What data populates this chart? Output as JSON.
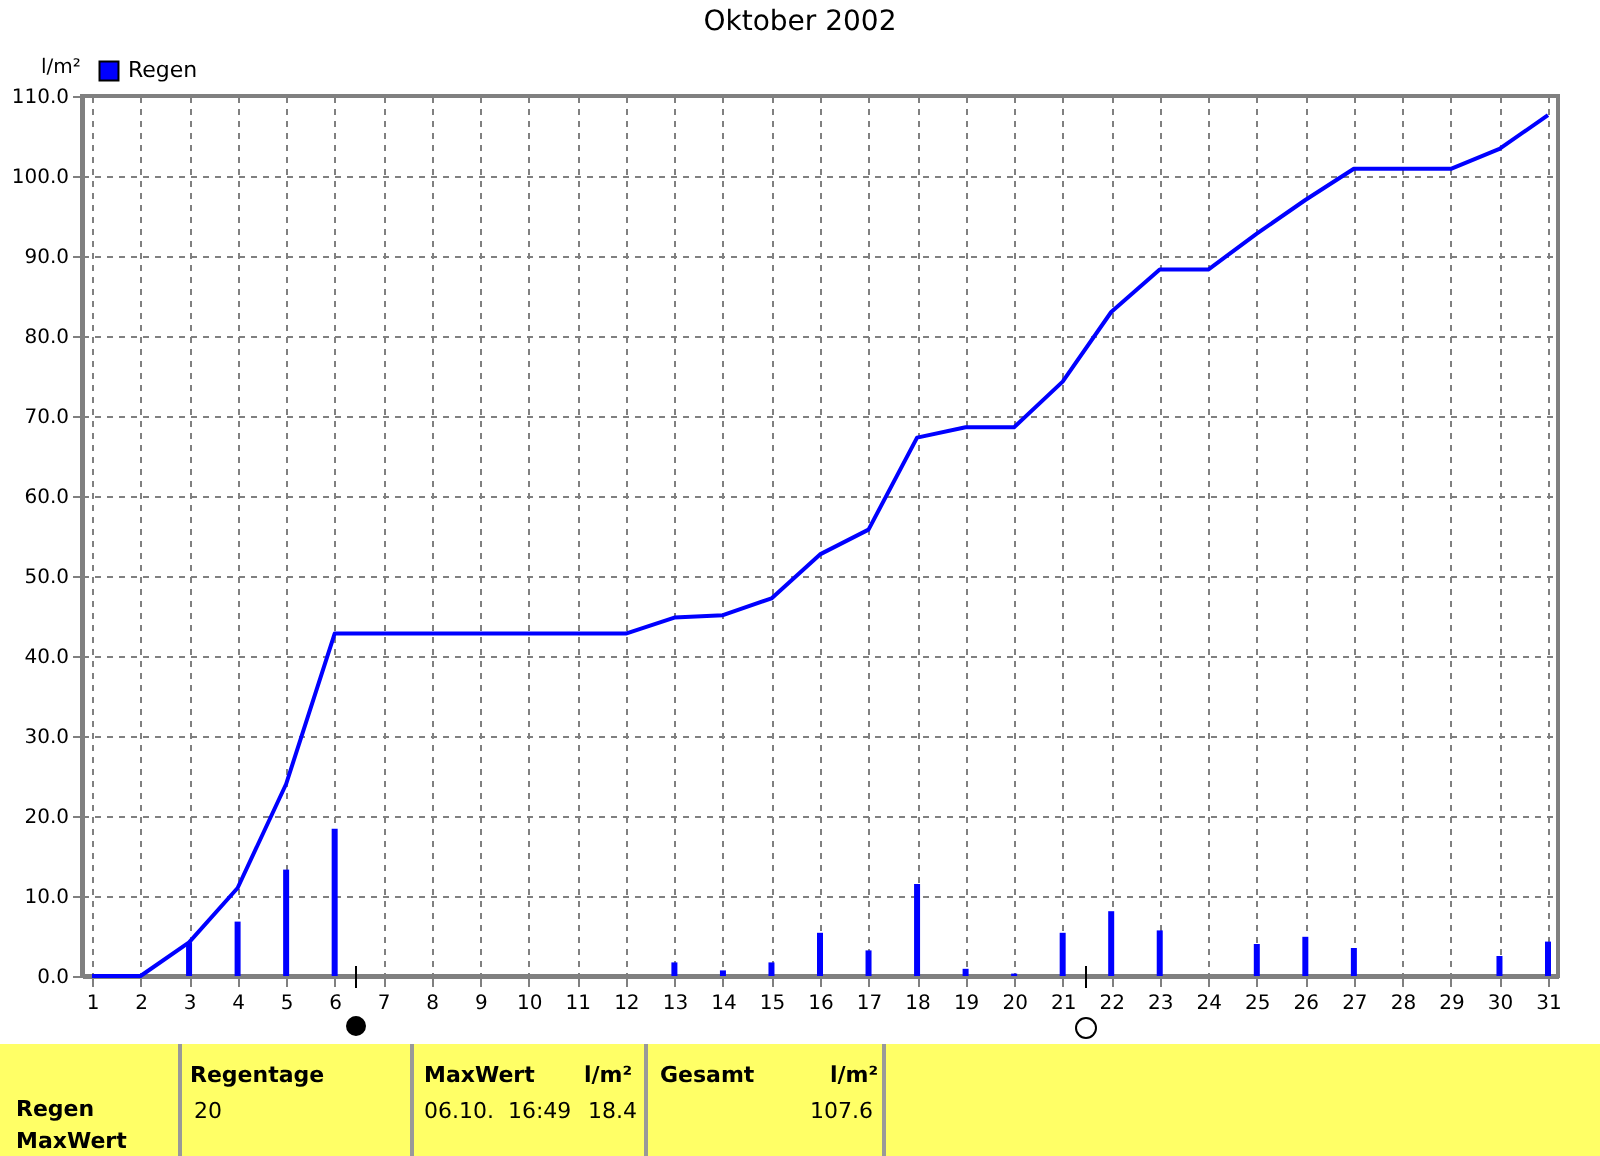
{
  "chart_data": {
    "type": "bar",
    "title": "Oktober 2002",
    "ylabel": "l/m²",
    "x": [
      1,
      2,
      3,
      4,
      5,
      6,
      7,
      8,
      9,
      10,
      11,
      12,
      13,
      14,
      15,
      16,
      17,
      18,
      19,
      20,
      21,
      22,
      23,
      24,
      25,
      26,
      27,
      28,
      29,
      30,
      31
    ],
    "xlim": [
      1,
      31
    ],
    "xticks": [
      1,
      2,
      3,
      4,
      5,
      6,
      7,
      8,
      9,
      10,
      11,
      12,
      13,
      14,
      15,
      16,
      17,
      18,
      19,
      20,
      21,
      22,
      23,
      24,
      25,
      26,
      27,
      28,
      29,
      30,
      31
    ],
    "ylim": [
      0,
      110
    ],
    "yticks": [
      {
        "value": 0,
        "label": "0.0"
      },
      {
        "value": 10,
        "label": "10.0"
      },
      {
        "value": 20,
        "label": "20.0"
      },
      {
        "value": 30,
        "label": "30.0"
      },
      {
        "value": 40,
        "label": "40.0"
      },
      {
        "value": 50,
        "label": "50.0"
      },
      {
        "value": 60,
        "label": "60.0"
      },
      {
        "value": 70,
        "label": "70.0"
      },
      {
        "value": 80,
        "label": "80.0"
      },
      {
        "value": 90,
        "label": "90.0"
      },
      {
        "value": 100,
        "label": "100.0"
      },
      {
        "value": 110,
        "label": "110.0"
      }
    ],
    "grid": true,
    "legend": "top left",
    "series": [
      {
        "name": "Regen",
        "color": "#0000ff",
        "values": [
          null,
          null,
          4.2,
          6.8,
          13.3,
          18.4,
          null,
          null,
          null,
          null,
          null,
          null,
          1.7,
          0.7,
          1.7,
          5.4,
          3.2,
          11.5,
          0.9,
          0.3,
          5.4,
          8.1,
          5.7,
          null,
          4.0,
          4.9,
          3.5,
          null,
          null,
          2.5,
          4.3
        ]
      },
      {
        "type": "line",
        "color": "#0000ff",
        "values": [
          0,
          0,
          4.2,
          11,
          24,
          42.8,
          42.8,
          42.8,
          42.8,
          42.8,
          42.8,
          42.8,
          44.8,
          45.1,
          47.2,
          52.7,
          55.8,
          67.3,
          68.6,
          68.6,
          74.3,
          83.0,
          88.3,
          88.3,
          92.8,
          97.0,
          100.9,
          100.9,
          100.9,
          103.4,
          107.6
        ]
      }
    ],
    "annotations": [
      "Regen",
      "MaxWert",
      "Regentage",
      "20",
      "MaxWert",
      "l/m²",
      "06.10.  16:49",
      "18.4",
      "Gesamt",
      "l/m²",
      "107.6"
    ]
  }
}
